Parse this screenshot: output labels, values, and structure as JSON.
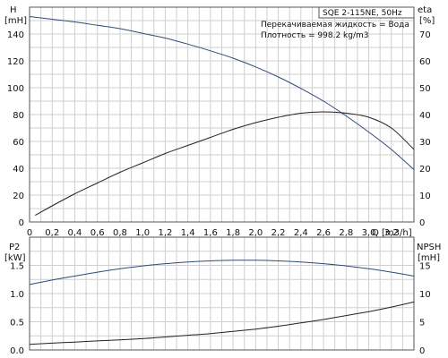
{
  "chart_data": [
    {
      "type": "line",
      "panel": "top",
      "title_box": "SQE 2-115NE, 50Hz",
      "annotations": [
        "Перекачиваемая жидкость = Вода",
        "Плотность = 998.2 kg/m3"
      ],
      "xlabel": "Q",
      "xunit": "[m3/h]",
      "xlim": [
        0,
        3.4
      ],
      "xticks": [
        "0",
        "0,2",
        "0,4",
        "0,6",
        "0,8",
        "1,0",
        "1,2",
        "1,4",
        "1,6",
        "1,8",
        "2,0",
        "2,2",
        "2,4",
        "2,6",
        "2,8",
        "3,0",
        "3,2"
      ],
      "ylabel_left": "H",
      "yunit_left": "[mH]",
      "ylim_left": [
        0,
        160
      ],
      "yticks_left": [
        "0",
        "20",
        "40",
        "60",
        "80",
        "100",
        "120",
        "140"
      ],
      "ylabel_right": "eta",
      "yunit_right": "[%]",
      "ylim_right": [
        0,
        80
      ],
      "yticks_right": [
        "0",
        "10",
        "20",
        "30",
        "40",
        "50",
        "60",
        "70"
      ],
      "grid": true,
      "series": [
        {
          "axis": "left",
          "color": "#2f4a7a",
          "x": [
            0.0,
            0.2,
            0.4,
            0.6,
            0.8,
            1.0,
            1.2,
            1.4,
            1.6,
            1.8,
            2.0,
            2.2,
            2.4,
            2.6,
            2.8,
            3.0,
            3.2,
            3.4
          ],
          "y": [
            153,
            151,
            149,
            146.5,
            144,
            140.5,
            137,
            132.5,
            127.5,
            122,
            115.5,
            108,
            99.5,
            90,
            79,
            67,
            54,
            39
          ]
        },
        {
          "axis": "right",
          "color": "#222222",
          "x": [
            0.05,
            0.2,
            0.4,
            0.6,
            0.8,
            1.0,
            1.2,
            1.4,
            1.6,
            1.8,
            2.0,
            2.2,
            2.4,
            2.6,
            2.8,
            3.0,
            3.2,
            3.4
          ],
          "y": [
            2.5,
            6,
            10.5,
            14.5,
            18.5,
            22,
            25.5,
            28.5,
            31.5,
            34.5,
            37,
            39,
            40.5,
            41,
            40.5,
            39,
            35,
            27
          ]
        }
      ]
    },
    {
      "type": "line",
      "panel": "bottom",
      "ylabel_left": "P2",
      "yunit_left": "[kW]",
      "ylim_left": [
        0,
        2.0
      ],
      "yticks_left": [
        "0.0",
        "0.5",
        "1.0",
        "1.5"
      ],
      "ylabel_right": "NPSH",
      "yunit_right": "[mH]",
      "ylim_right": [
        0,
        20
      ],
      "yticks_right": [
        "0",
        "5",
        "10",
        "15"
      ],
      "xlim": [
        0,
        3.4
      ],
      "grid": true,
      "series": [
        {
          "axis": "left",
          "color": "#2f4a7a",
          "x": [
            0.0,
            0.2,
            0.4,
            0.6,
            0.8,
            1.0,
            1.2,
            1.4,
            1.6,
            1.8,
            2.0,
            2.2,
            2.4,
            2.6,
            2.8,
            3.0,
            3.2,
            3.4
          ],
          "y": [
            1.16,
            1.24,
            1.31,
            1.38,
            1.44,
            1.49,
            1.53,
            1.56,
            1.58,
            1.59,
            1.59,
            1.58,
            1.56,
            1.53,
            1.49,
            1.44,
            1.38,
            1.31
          ]
        },
        {
          "axis": "right",
          "color": "#222222",
          "x": [
            0.0,
            0.2,
            0.4,
            0.6,
            0.8,
            1.0,
            1.2,
            1.4,
            1.6,
            1.8,
            2.0,
            2.2,
            2.4,
            2.6,
            2.8,
            3.0,
            3.2,
            3.4
          ],
          "y": [
            1.0,
            1.2,
            1.4,
            1.6,
            1.8,
            2.0,
            2.3,
            2.6,
            2.9,
            3.3,
            3.7,
            4.2,
            4.8,
            5.4,
            6.1,
            6.8,
            7.6,
            8.5
          ]
        }
      ]
    }
  ]
}
